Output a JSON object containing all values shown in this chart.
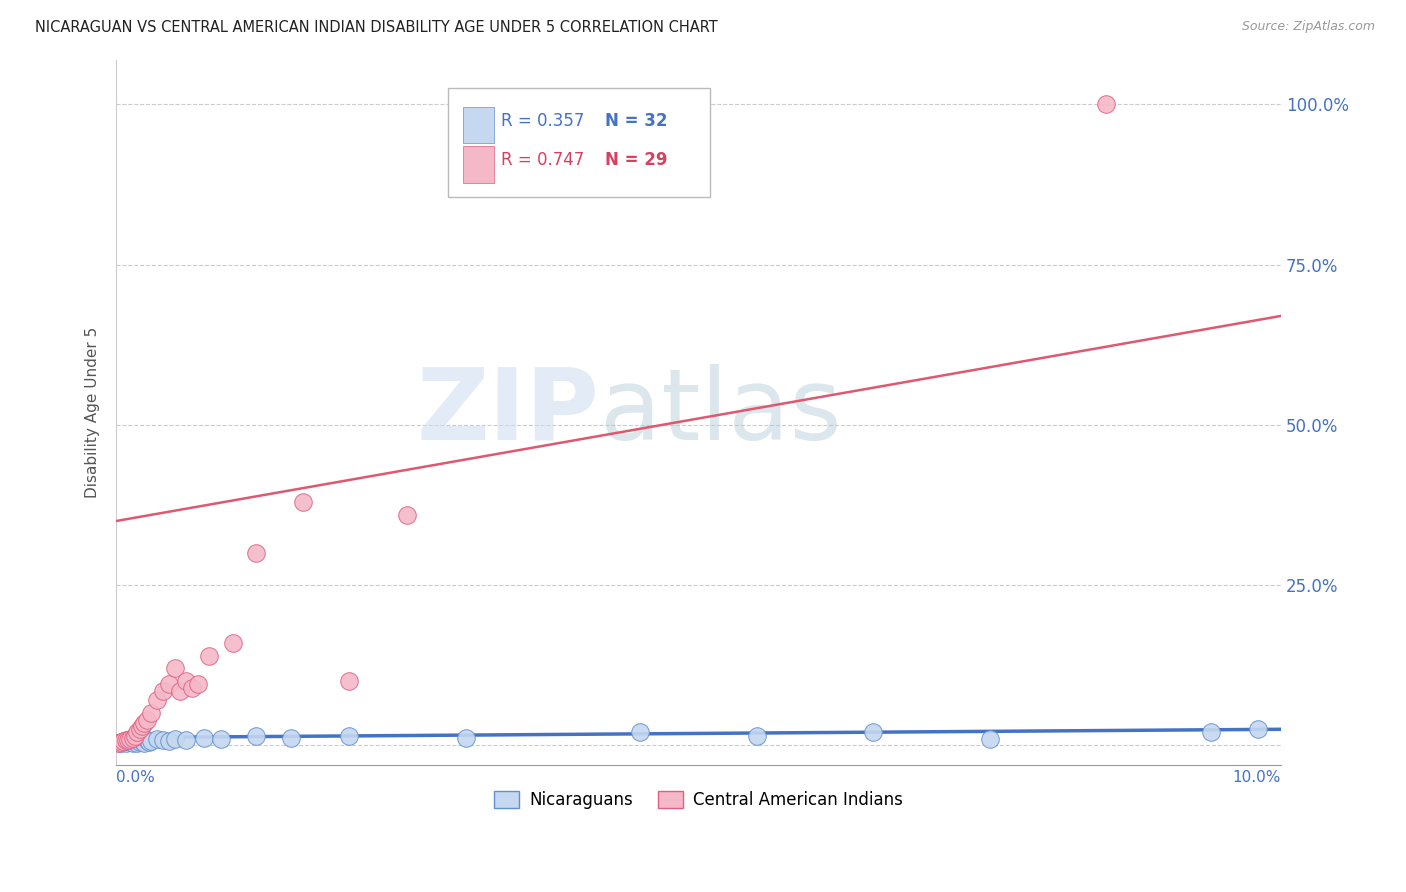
{
  "title": "NICARAGUAN VS CENTRAL AMERICAN INDIAN DISABILITY AGE UNDER 5 CORRELATION CHART",
  "source": "Source: ZipAtlas.com",
  "ylabel": "Disability Age Under 5",
  "series1_name": "Nicaraguans",
  "series2_name": "Central American Indians",
  "series1_dot_color": "#c5d8f0",
  "series2_dot_color": "#f5b8c8",
  "series1_edge_color": "#6090d0",
  "series2_edge_color": "#e06080",
  "series1_line_color": "#4472c4",
  "series2_line_color": "#e05870",
  "blue_color": "#4472c4",
  "pink_color": "#d84060",
  "legend_r1": "R = 0.357",
  "legend_n1": "N = 32",
  "legend_r2": "R = 0.747",
  "legend_n2": "N = 29",
  "nic_x": [
    0.02,
    0.04,
    0.06,
    0.08,
    0.1,
    0.12,
    0.14,
    0.16,
    0.18,
    0.2,
    0.22,
    0.24,
    0.26,
    0.28,
    0.3,
    0.35,
    0.4,
    0.45,
    0.5,
    0.6,
    0.75,
    0.9,
    1.2,
    1.5,
    2.0,
    3.0,
    4.5,
    5.5,
    6.5,
    7.5,
    9.4,
    9.8
  ],
  "nic_y": [
    0.4,
    0.3,
    0.5,
    0.4,
    0.6,
    0.5,
    0.4,
    0.7,
    0.4,
    0.5,
    0.6,
    0.4,
    0.8,
    0.5,
    0.7,
    1.0,
    0.8,
    0.7,
    1.0,
    0.8,
    1.2,
    1.0,
    1.5,
    1.2,
    1.5,
    1.2,
    2.0,
    1.5,
    2.0,
    1.0,
    2.0,
    2.5
  ],
  "cai_x": [
    0.02,
    0.04,
    0.06,
    0.08,
    0.1,
    0.12,
    0.14,
    0.16,
    0.18,
    0.2,
    0.22,
    0.24,
    0.26,
    0.3,
    0.35,
    0.4,
    0.45,
    0.5,
    0.55,
    0.6,
    0.65,
    0.7,
    0.8,
    1.0,
    1.2,
    1.6,
    2.0,
    2.5,
    8.5
  ],
  "cai_y": [
    0.3,
    0.5,
    0.6,
    0.8,
    0.8,
    1.0,
    1.2,
    1.5,
    2.0,
    2.5,
    3.0,
    3.5,
    4.0,
    5.0,
    7.0,
    8.5,
    9.5,
    12.0,
    8.5,
    10.0,
    9.0,
    9.5,
    14.0,
    16.0,
    30.0,
    38.0,
    10.0,
    36.0,
    100.0
  ],
  "nic_line_x": [
    0.0,
    10.0
  ],
  "nic_line_y": [
    1.2,
    2.5
  ],
  "cai_line_x": [
    0.0,
    10.0
  ],
  "cai_line_y": [
    35.0,
    67.0
  ],
  "xlim": [
    0.0,
    10.0
  ],
  "ylim_min": -3.0,
  "ylim_max": 107.0,
  "ytick_vals": [
    0,
    25,
    50,
    75,
    100
  ],
  "ytick_labels_right": [
    "",
    "25.0%",
    "50.0%",
    "75.0%",
    "100.0%"
  ]
}
